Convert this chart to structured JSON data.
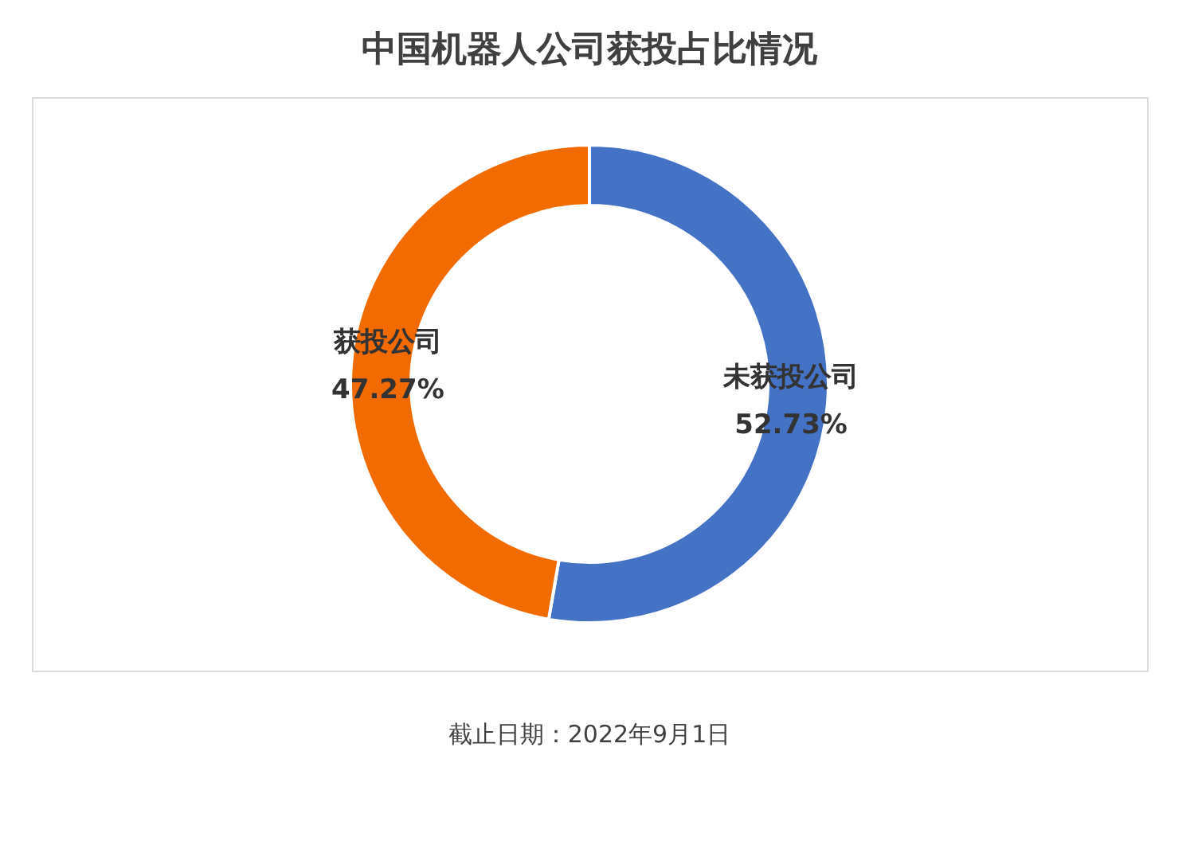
{
  "chart_data": {
    "type": "donut",
    "title": "中国机器人公司获投占比情况",
    "categories": [
      "未获投公司",
      "获投公司"
    ],
    "values": [
      52.73,
      47.27
    ],
    "value_labels": [
      "52.73%",
      "47.27%"
    ],
    "colors": [
      "#4472c4",
      "#f26b00"
    ],
    "legend": false,
    "annotations": [
      "截止日期：2022年9月1日"
    ]
  }
}
